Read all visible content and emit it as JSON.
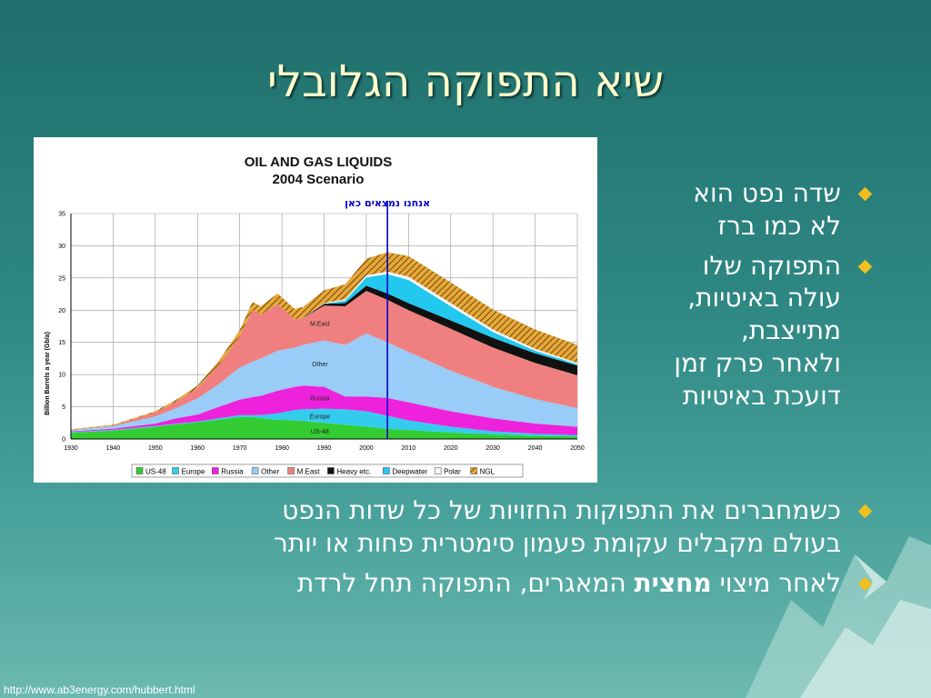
{
  "slide": {
    "title": "שיא התפוקה הגלובלי",
    "source_url": "http://www.ab3energy.com/hubbert.html"
  },
  "bullets": {
    "b1_line1": "שדה נפט הוא",
    "b1_line2": "לא כמו ברז",
    "b2_line1": "התפוקה שלו",
    "b2_line2": "עולה באיטיות,",
    "b2_line3": "מתייצבת,",
    "b2_line4": "ולאחר פרק זמן",
    "b2_line5": "דועכת באיטיות",
    "b3_line1": "כשמחברים את התפוקות החזויות של כל שדות הנפט",
    "b3_line2": "בעולם מקבלים עקומת פעמון סימטרית פחות או יותר",
    "b4_part1": "לאחר מיצוי ",
    "b4_bold": "מחצית",
    "b4_part2": " המאגרים, התפוקה תחל לרדת"
  },
  "colors": {
    "bullet_diamond": "#f0c020",
    "title": "#ffffcc",
    "annotation": "#0000cc"
  },
  "chart_data": {
    "type": "area",
    "stacked": true,
    "title_line1": "OIL AND GAS LIQUIDS",
    "title_line2": "2004 Scenario",
    "ylabel": "Billion Barrels a year (Gb/a)",
    "xlabel": "",
    "xlim": [
      1930,
      2050
    ],
    "ylim": [
      0,
      35
    ],
    "x_ticks": [
      1930,
      1940,
      1950,
      1960,
      1970,
      1980,
      1990,
      2000,
      2010,
      2020,
      2030,
      2040,
      2050
    ],
    "y_ticks": [
      0,
      5,
      10,
      15,
      20,
      25,
      30,
      35
    ],
    "grid": true,
    "legend_position": "bottom",
    "annotation": {
      "text": "אנחנו נמצאים כאן",
      "x": 2005
    },
    "x": [
      1930,
      1940,
      1950,
      1955,
      1960,
      1965,
      1970,
      1973,
      1975,
      1979,
      1983,
      1985,
      1990,
      1995,
      2000,
      2005,
      2010,
      2020,
      2030,
      2040,
      2050
    ],
    "series": [
      {
        "name": "US-48",
        "color": "#33cc33",
        "values": [
          1.0,
          1.3,
          1.9,
          2.3,
          2.6,
          3.0,
          3.4,
          3.4,
          3.2,
          3.0,
          2.9,
          2.8,
          2.5,
          2.2,
          1.9,
          1.6,
          1.4,
          1.0,
          0.7,
          0.5,
          0.4
        ]
      },
      {
        "name": "Europe",
        "color": "#33ccee",
        "values": [
          0.1,
          0.1,
          0.1,
          0.1,
          0.1,
          0.2,
          0.3,
          0.3,
          0.5,
          1.0,
          1.6,
          1.8,
          2.2,
          2.4,
          2.4,
          2.0,
          1.5,
          0.9,
          0.5,
          0.3,
          0.2
        ]
      },
      {
        "name": "Russia",
        "color": "#ee22dd",
        "values": [
          0.1,
          0.2,
          0.4,
          0.8,
          1.1,
          1.8,
          2.4,
          2.8,
          3.0,
          3.5,
          3.6,
          3.7,
          3.4,
          2.0,
          2.3,
          2.8,
          2.8,
          2.4,
          2.0,
          1.6,
          1.3
        ]
      },
      {
        "name": "Other",
        "color": "#99ccf6",
        "values": [
          0.2,
          0.4,
          1.1,
          1.6,
          2.5,
          3.5,
          5.0,
          5.5,
          5.8,
          6.2,
          6.1,
          6.3,
          7.2,
          8.0,
          9.8,
          8.6,
          7.8,
          6.3,
          4.9,
          3.8,
          2.9
        ]
      },
      {
        "name": "M.East",
        "color": "#f08080",
        "values": [
          0.0,
          0.1,
          0.6,
          1.0,
          1.6,
          3.0,
          4.8,
          8.0,
          6.8,
          7.3,
          4.4,
          4.2,
          5.4,
          6.0,
          6.6,
          6.6,
          6.5,
          6.5,
          6.1,
          5.6,
          5.1
        ]
      },
      {
        "name": "Heavy etc.",
        "color": "#111111",
        "values": [
          0,
          0,
          0,
          0,
          0,
          0,
          0,
          0,
          0,
          0,
          0,
          0,
          0.3,
          0.5,
          0.8,
          1.0,
          1.1,
          1.3,
          1.5,
          1.5,
          1.5
        ]
      },
      {
        "name": "Deepwater",
        "color": "#22c8ee",
        "values": [
          0,
          0,
          0,
          0,
          0,
          0,
          0,
          0,
          0,
          0,
          0,
          0,
          0,
          0.4,
          1.3,
          3.0,
          3.6,
          2.2,
          0.9,
          0.4,
          0.2
        ]
      },
      {
        "name": "Polar",
        "color": "#f4f4f4",
        "values": [
          0,
          0,
          0,
          0,
          0,
          0,
          0,
          0,
          0,
          0,
          0,
          0,
          0.1,
          0.2,
          0.3,
          0.4,
          0.5,
          0.5,
          0.4,
          0.3,
          0.2
        ]
      },
      {
        "name": "NGL",
        "color": "#cc9933",
        "values": [
          0.1,
          0.1,
          0.2,
          0.3,
          0.4,
          0.6,
          1.0,
          1.3,
          1.3,
          1.6,
          1.6,
          1.7,
          2.0,
          2.3,
          2.6,
          3.0,
          3.2,
          3.2,
          3.1,
          3.0,
          2.8
        ]
      }
    ],
    "inline_labels": [
      {
        "series": "M.East",
        "text": "M.East"
      },
      {
        "series": "Other",
        "text": "Other"
      },
      {
        "series": "Russia",
        "text": "Russia"
      },
      {
        "series": "Europe",
        "text": "Europe"
      },
      {
        "series": "US-48",
        "text": "US-48"
      }
    ]
  }
}
